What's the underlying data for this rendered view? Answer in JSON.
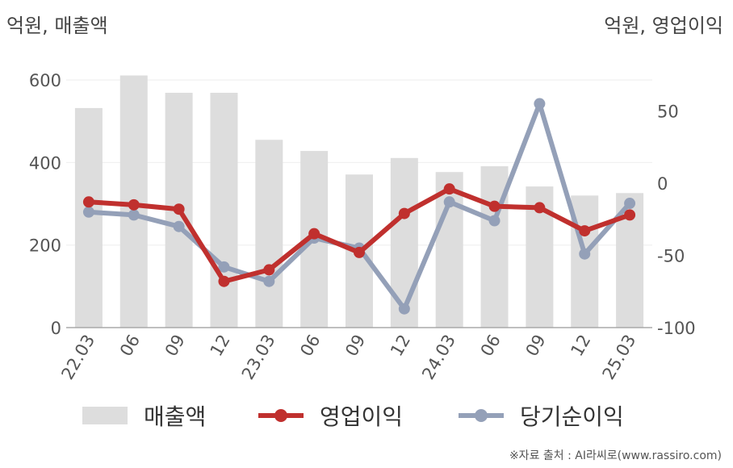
{
  "units": {
    "left": "억원, 매출액",
    "right": "억원, 영업이익"
  },
  "source": "※자료 출처 : AI라씨로(www.rassiro.com)",
  "colors": {
    "revenue": "#dddddd",
    "operating": "#c0302e",
    "net": "#94a0b8"
  },
  "legend": [
    {
      "name": "매출액",
      "kind": "bar",
      "color": "#dddddd"
    },
    {
      "name": "영업이익",
      "kind": "line",
      "color": "#c0302e"
    },
    {
      "name": "당기순이익",
      "kind": "line",
      "color": "#94a0b8"
    }
  ],
  "chart_data": {
    "type": "bar",
    "categories": [
      "22.03",
      "06",
      "09",
      "12",
      "23.03",
      "06",
      "09",
      "12",
      "24.03",
      "06",
      "09",
      "12",
      "25.03"
    ],
    "y_left": {
      "ticks": [
        0,
        200,
        400,
        600
      ],
      "ylim": [
        0,
        700
      ]
    },
    "y_right": {
      "ticks": [
        -100,
        -50,
        0,
        50
      ],
      "ylim": [
        -100,
        100
      ]
    },
    "grid": true,
    "legend_position": "bottom",
    "series": [
      {
        "name": "매출액",
        "type": "bar",
        "axis": "left",
        "color": "#dddddd",
        "values": [
          532,
          611,
          569,
          569,
          455,
          428,
          371,
          411,
          377,
          391,
          342,
          320,
          326
        ]
      },
      {
        "name": "영업이익",
        "type": "line",
        "axis": "right",
        "color": "#c0302e",
        "values": [
          -13,
          -15,
          -18,
          -68,
          -60,
          -35,
          -48,
          -21,
          -4,
          -16,
          -17,
          -33,
          -22
        ]
      },
      {
        "name": "당기순이익",
        "type": "line",
        "axis": "right",
        "color": "#94a0b8",
        "values": [
          -20,
          -22,
          -30,
          -58,
          -68,
          -38,
          -45,
          -87,
          -13,
          -26,
          55,
          -49,
          -14
        ]
      }
    ]
  }
}
